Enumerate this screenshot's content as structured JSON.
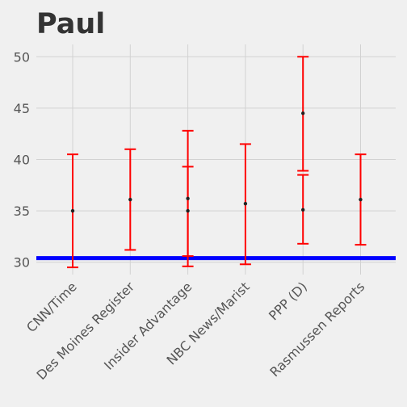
{
  "chart_data": {
    "type": "scatter",
    "title": "Paul",
    "xlabel": "",
    "ylabel": "",
    "categories": [
      "CNN/Time",
      "Des Moines Register",
      "Insider Advantage",
      "NBC News/Marist",
      "PPP (D)",
      "Rasmussen Reports"
    ],
    "points": [
      {
        "category": "CNN/Time",
        "y": 35.0,
        "low": 29.5,
        "high": 40.5
      },
      {
        "category": "Des Moines Register",
        "y": 36.1,
        "low": 31.2,
        "high": 41.0
      },
      {
        "category": "Insider Advantage",
        "y": 36.2,
        "low": 29.6,
        "high": 42.8
      },
      {
        "category": "Insider Advantage",
        "y": 35.0,
        "low": 30.6,
        "high": 39.3
      },
      {
        "category": "NBC News/Marist",
        "y": 35.7,
        "low": 29.8,
        "high": 41.5
      },
      {
        "category": "PPP (D)",
        "y": 44.5,
        "low": 38.9,
        "high": 50.0
      },
      {
        "category": "PPP (D)",
        "y": 35.1,
        "low": 31.8,
        "high": 38.5
      },
      {
        "category": "Rasmussen Reports",
        "y": 36.1,
        "low": 31.7,
        "high": 40.5
      }
    ],
    "reference_line": {
      "y": 30.4,
      "color": "#0000ff"
    },
    "ylim": [
      28.8,
      51.2
    ],
    "yticks": [
      30,
      35,
      40,
      45,
      50
    ],
    "grid": true,
    "legend": "none",
    "colors": {
      "errorbar": "#ff0000",
      "point": "#222222",
      "background": "#f0f0f0",
      "grid": "#d2d2d2",
      "title": "#333333",
      "ticks": "#555555"
    }
  }
}
